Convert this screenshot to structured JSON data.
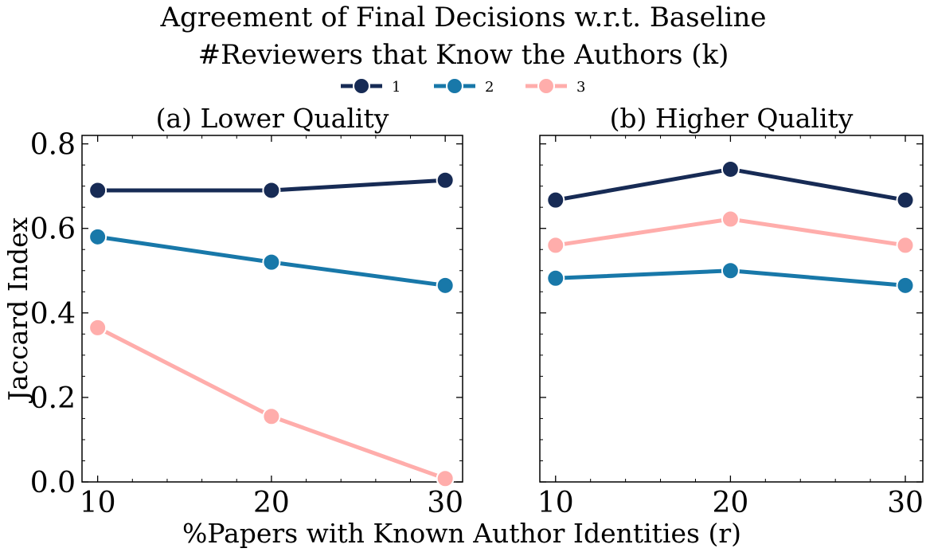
{
  "chart_data": {
    "type": "line",
    "title": "Agreement of Final Decisions w.r.t. Baseline",
    "legend_title": "#Reviewers that Know the Authors (k)",
    "legend_placement": "top-center",
    "xlabel": "%Papers with Known Author Identities (r)",
    "ylabel": "Jaccard Index",
    "x": [
      10,
      20,
      30
    ],
    "x_ticks": [
      "10",
      "20",
      "30"
    ],
    "ylim": [
      0.0,
      0.82
    ],
    "y_ticks": [
      "0.0",
      "0.2",
      "0.4",
      "0.6",
      "0.8"
    ],
    "series_styles": [
      {
        "name": "1",
        "color": "#172b55"
      },
      {
        "name": "2",
        "color": "#1878a9"
      },
      {
        "name": "3",
        "color": "#ffadab"
      }
    ],
    "panels": [
      {
        "title": "(a) Lower Quality",
        "series": [
          {
            "name": "1",
            "values": [
              0.69,
              0.69,
              0.714
            ]
          },
          {
            "name": "2",
            "values": [
              0.58,
              0.52,
              0.465
            ]
          },
          {
            "name": "3",
            "values": [
              0.365,
              0.155,
              0.008
            ]
          }
        ]
      },
      {
        "title": "(b) Higher Quality",
        "series": [
          {
            "name": "1",
            "values": [
              0.667,
              0.74,
              0.667
            ]
          },
          {
            "name": "2",
            "values": [
              0.482,
              0.5,
              0.465
            ]
          },
          {
            "name": "3",
            "values": [
              0.56,
              0.622,
              0.56
            ]
          }
        ]
      }
    ]
  }
}
